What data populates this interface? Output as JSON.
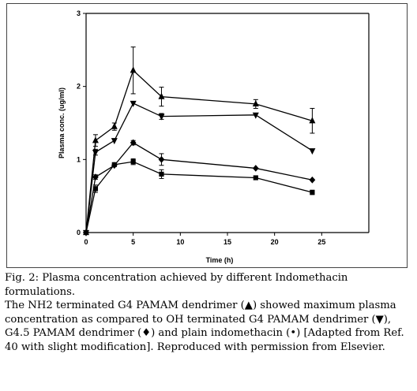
{
  "caption": {
    "title": "Fig. 2: Plasma concentration achieved by different Indomethacin formulations.",
    "body": "The NH2 terminated G4 PAMAM dendrimer (▲) showed maximum plasma concentration as compared to OH terminated G4 PAMAM dendrimer (▼), G4.5 PAMAM dendrimer (♦) and plain indomethacin (•) [Adapted from Ref. 40 with slight modification]. Reproduced with permission from Elsevier."
  },
  "chart_data": {
    "type": "line",
    "xlabel": "Time (h)",
    "ylabel": "Plasma conc. (ug/ml)",
    "xlim": [
      0,
      30
    ],
    "ylim": [
      0,
      3
    ],
    "xticks": [
      "0",
      "5",
      "10",
      "15",
      "20",
      "25"
    ],
    "yticks": [
      "0",
      "1",
      "2",
      "3"
    ],
    "grid": false,
    "legend": "none",
    "series": [
      {
        "marker": "triangle-up",
        "x": [
          0,
          1,
          3,
          5,
          8,
          18,
          24
        ],
        "y": [
          0,
          1.26,
          1.45,
          2.22,
          1.86,
          1.76,
          1.53
        ],
        "err": [
          0,
          0.08,
          0.05,
          0.32,
          0.13,
          0.06,
          0.17
        ]
      },
      {
        "marker": "triangle-down",
        "x": [
          0,
          1,
          3,
          5,
          8,
          18,
          24
        ],
        "y": [
          0,
          1.1,
          1.26,
          1.77,
          1.59,
          1.61,
          1.12
        ],
        "err": [
          0,
          0.04,
          0,
          0,
          0.04,
          0,
          0
        ]
      },
      {
        "marker": "diamond",
        "x": [
          0,
          1,
          3,
          5,
          8,
          18,
          24
        ],
        "y": [
          0,
          0.76,
          0.92,
          1.23,
          1.0,
          0.88,
          0.72
        ],
        "err": [
          0,
          0.03,
          0,
          0.03,
          0.08,
          0,
          0
        ]
      },
      {
        "marker": "square",
        "x": [
          0,
          1,
          3,
          5,
          8,
          18,
          24
        ],
        "y": [
          0,
          0.6,
          0.93,
          0.97,
          0.8,
          0.75,
          0.55
        ],
        "err": [
          0,
          0.05,
          0,
          0.04,
          0.06,
          0,
          0.03
        ]
      }
    ]
  }
}
